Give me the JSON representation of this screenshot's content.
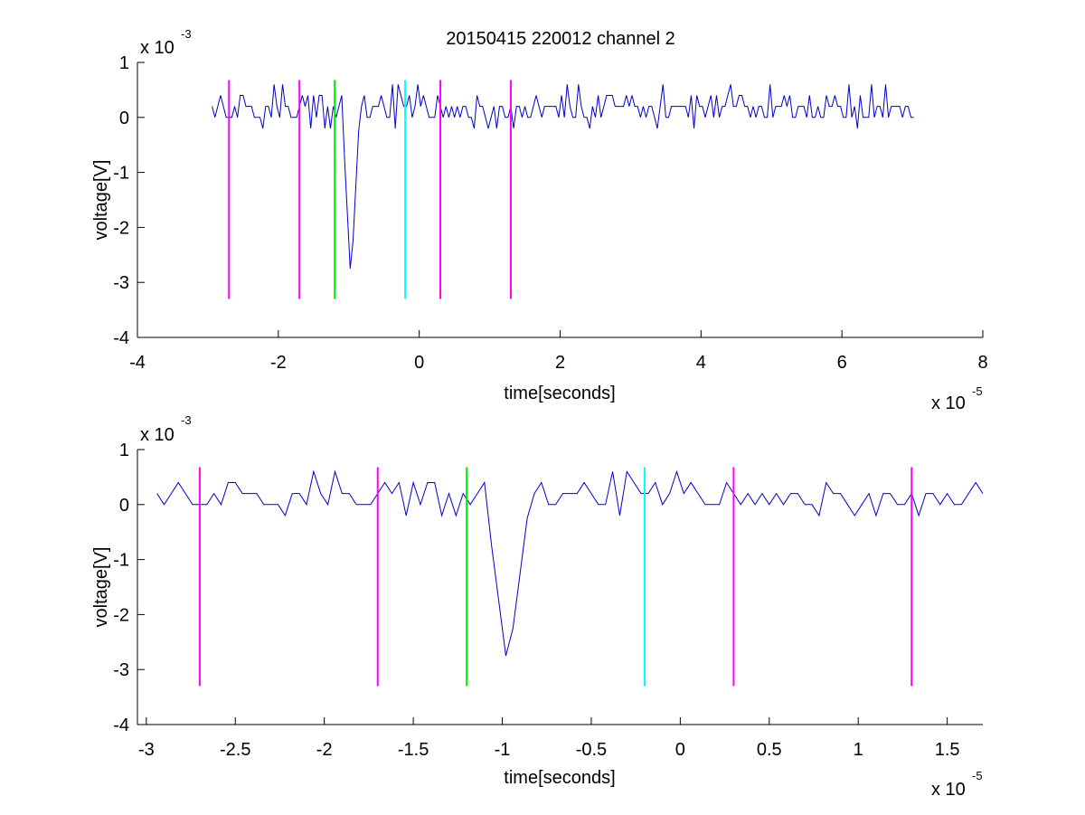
{
  "title": "20150415 220012 channel 2",
  "colors": {
    "signal": "#0000cc",
    "marker_magenta": "#ff00ff",
    "marker_green": "#00ee00",
    "marker_cyan": "#00ffff",
    "axes": "#000000",
    "background": "#ffffff"
  },
  "chart_data": [
    {
      "type": "line",
      "panel": "top",
      "title": "20150415 220012 channel 2",
      "xlabel": "time[seconds]",
      "ylabel": "voltage[V]",
      "x_multiplier_label": "x 10",
      "x_multiplier_exp": "-5",
      "y_multiplier_label": "x 10",
      "y_multiplier_exp": "-3",
      "xlim": [
        -4,
        8
      ],
      "ylim": [
        -4,
        1
      ],
      "xticks": [
        -4,
        -2,
        0,
        2,
        4,
        6,
        8
      ],
      "xtick_labels": [
        "-4",
        "-2",
        "0",
        "2",
        "4",
        "6",
        "8"
      ],
      "yticks": [
        1,
        0,
        -1,
        -2,
        -3,
        -4
      ],
      "ytick_labels": [
        "1",
        "0",
        "-1",
        "-2",
        "-3",
        "-4"
      ],
      "grid": false,
      "signal": {
        "x_start": -2.94,
        "x_end": 7.02,
        "baseline_values": [
          0,
          0.2
        ],
        "noise_min": -0.2,
        "noise_max": 0.6,
        "pulse_x": -0.97,
        "pulse_min": -3.0
      },
      "markers": [
        {
          "x": -2.7,
          "color": "magenta",
          "y_top": 0.68,
          "y_bottom": -3.3
        },
        {
          "x": -1.7,
          "color": "magenta",
          "y_top": 0.68,
          "y_bottom": -3.3
        },
        {
          "x": -1.2,
          "color": "green",
          "y_top": 0.68,
          "y_bottom": -3.3
        },
        {
          "x": -0.2,
          "color": "cyan",
          "y_top": 0.68,
          "y_bottom": -3.3
        },
        {
          "x": 0.3,
          "color": "magenta",
          "y_top": 0.68,
          "y_bottom": -3.3
        },
        {
          "x": 1.3,
          "color": "magenta",
          "y_top": 0.68,
          "y_bottom": -3.3
        }
      ]
    },
    {
      "type": "line",
      "panel": "bottom",
      "xlabel": "time[seconds]",
      "ylabel": "voltage[V]",
      "x_multiplier_label": "x 10",
      "x_multiplier_exp": "-5",
      "y_multiplier_label": "x 10",
      "y_multiplier_exp": "-3",
      "xlim": [
        -3.05,
        1.7
      ],
      "ylim": [
        -4,
        1
      ],
      "xticks": [
        -3,
        -2.5,
        -2,
        -1.5,
        -1,
        -0.5,
        0,
        0.5,
        1,
        1.5
      ],
      "xtick_labels": [
        "-3",
        "-2.5",
        "-2",
        "-1.5",
        "-1",
        "-0.5",
        "0",
        "0.5",
        "1",
        "1.5"
      ],
      "yticks": [
        1,
        0,
        -1,
        -2,
        -3,
        -4
      ],
      "ytick_labels": [
        "1",
        "0",
        "-1",
        "-2",
        "-3",
        "-4"
      ],
      "grid": false,
      "signal": {
        "x_start": -2.94,
        "x_end": 1.7,
        "baseline_values": [
          0,
          0.2
        ],
        "noise_min": -0.2,
        "noise_max": 0.6,
        "pulse_x": -0.97,
        "pulse_min": -3.0
      },
      "markers": [
        {
          "x": -2.7,
          "color": "magenta",
          "y_top": 0.68,
          "y_bottom": -3.3
        },
        {
          "x": -1.7,
          "color": "magenta",
          "y_top": 0.68,
          "y_bottom": -3.3
        },
        {
          "x": -1.2,
          "color": "green",
          "y_top": 0.68,
          "y_bottom": -3.3
        },
        {
          "x": -0.2,
          "color": "cyan",
          "y_top": 0.68,
          "y_bottom": -3.3
        },
        {
          "x": 0.3,
          "color": "magenta",
          "y_top": 0.68,
          "y_bottom": -3.3
        },
        {
          "x": 1.3,
          "color": "magenta",
          "y_top": 0.68,
          "y_bottom": -3.3
        }
      ]
    }
  ]
}
